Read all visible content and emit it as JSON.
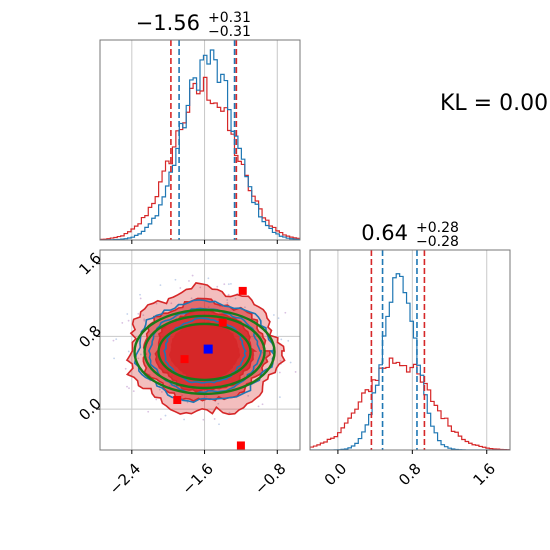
{
  "kl_text": "KL = 0.00",
  "colors": {
    "red": "#d62728",
    "blue": "#1f77b4",
    "green": "#1a7a1a",
    "grid": "#c8c8c8"
  },
  "chart_data": [
    {
      "type": "histogram",
      "panel": "marginal-x",
      "title": {
        "value": "−1.56",
        "plus": "+0.31",
        "minus": "−0.31"
      },
      "xlim": [
        -2.75,
        -0.55
      ],
      "ylim": [
        0,
        1
      ],
      "grid": true,
      "quantiles": {
        "red": [
          -1.97,
          -1.25
        ],
        "blue": [
          -1.88,
          -1.27
        ]
      },
      "series": [
        {
          "color": "red",
          "mean": -1.6,
          "sd": 0.34,
          "peak": 0.76
        },
        {
          "color": "blue",
          "mean": -1.56,
          "sd": 0.29,
          "peak": 0.9
        }
      ]
    },
    {
      "type": "histogram",
      "panel": "marginal-y",
      "title": {
        "value": "0.64",
        "plus": "+0.28",
        "minus": "−0.28"
      },
      "xlim": [
        -0.3,
        1.85
      ],
      "ylim": [
        0,
        1
      ],
      "grid": true,
      "xticks": [
        "0.0",
        "0.8",
        "1.6"
      ],
      "quantiles": {
        "red": [
          0.36,
          0.93
        ],
        "blue": [
          0.48,
          0.85
        ]
      },
      "series": [
        {
          "color": "red",
          "mean": 0.64,
          "sd": 0.35,
          "peak": 0.45
        },
        {
          "color": "blue",
          "mean": 0.66,
          "sd": 0.18,
          "peak": 0.86
        }
      ]
    },
    {
      "type": "contour",
      "panel": "joint",
      "xlim": [
        -2.75,
        -0.55
      ],
      "ylim": [
        -0.45,
        1.75
      ],
      "grid": true,
      "xticks": [
        "−2.4",
        "−1.6",
        "−0.8"
      ],
      "yticks": [
        "0.0",
        "0.8",
        "1.6"
      ],
      "center": [
        -1.6,
        0.64
      ],
      "red_points": [
        [
          -1.18,
          1.3
        ],
        [
          -1.82,
          0.55
        ],
        [
          -1.4,
          0.95
        ],
        [
          -1.9,
          0.1
        ],
        [
          -1.2,
          -0.4
        ]
      ],
      "blue_point": [
        -1.56,
        0.66
      ]
    }
  ]
}
